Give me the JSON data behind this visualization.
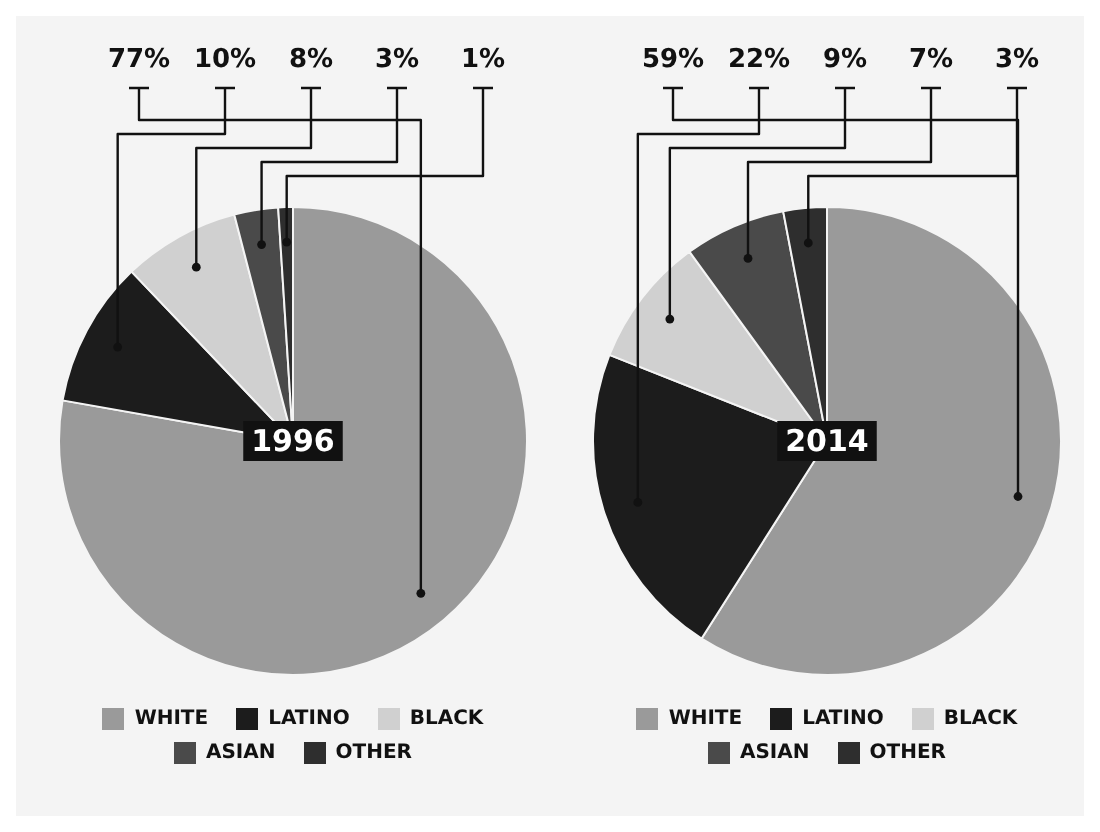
{
  "chart_data": [
    {
      "type": "pie",
      "title": "1996",
      "categories": [
        "WHITE",
        "LATINO",
        "BLACK",
        "ASIAN",
        "OTHER"
      ],
      "values": [
        77,
        10,
        8,
        3,
        1
      ],
      "value_labels": [
        "77%",
        "10%",
        "8%",
        "3%",
        "1%"
      ],
      "colors": [
        "#9a9a9a",
        "#1c1c1c",
        "#d0d0d0",
        "#4a4a4a",
        "#2e2e2e"
      ],
      "legend": "bottom"
    },
    {
      "type": "pie",
      "title": "2014",
      "categories": [
        "WHITE",
        "LATINO",
        "BLACK",
        "ASIAN",
        "OTHER"
      ],
      "values": [
        59,
        22,
        9,
        7,
        3
      ],
      "value_labels": [
        "59%",
        "22%",
        "9%",
        "7%",
        "3%"
      ],
      "colors": [
        "#9a9a9a",
        "#1c1c1c",
        "#d0d0d0",
        "#4a4a4a",
        "#2e2e2e"
      ],
      "legend": "bottom"
    }
  ]
}
